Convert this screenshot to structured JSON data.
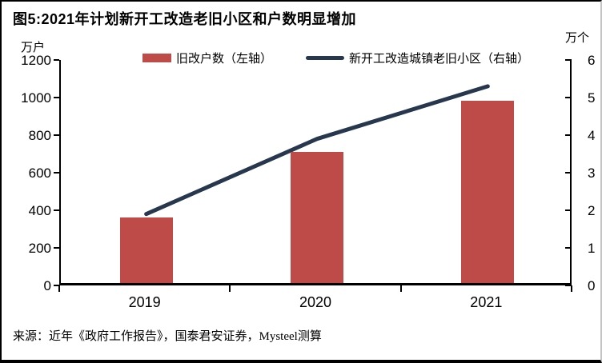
{
  "figure": {
    "title": "图5:2021年计划新开工改造老旧小区和户数明显增加",
    "source": "来源：近年《政府工作报告》，国泰君安证券，Mysteel测算",
    "left_axis_unit": "万户",
    "right_axis_unit": "万个"
  },
  "colors": {
    "bar": "#BE4B48",
    "line": "#27374E",
    "axis": "#000000"
  },
  "chart_data": {
    "type": "bar",
    "subtype": "bar+line combo, dual axis",
    "title": "图5:2021年计划新开工改造老旧小区和户数明显增加",
    "categories": [
      "2019",
      "2020",
      "2021"
    ],
    "series": [
      {
        "name": "旧改户数（左轴）",
        "type": "bar",
        "axis": "left",
        "values": [
          350,
          700,
          970
        ],
        "color": "#BE4B48"
      },
      {
        "name": "新开工改造城镇老旧小区（右轴）",
        "type": "line",
        "axis": "right",
        "values": [
          1.9,
          3.9,
          5.3
        ],
        "color": "#27374E"
      }
    ],
    "left_axis": {
      "label": "万户",
      "min": 0,
      "max": 1200,
      "ticks": [
        0,
        200,
        400,
        600,
        800,
        1000,
        1200
      ]
    },
    "right_axis": {
      "label": "万个",
      "min": 0,
      "max": 6,
      "ticks": [
        0,
        1,
        2,
        3,
        4,
        5,
        6
      ]
    },
    "grid": false,
    "legend_position": "top-center"
  }
}
